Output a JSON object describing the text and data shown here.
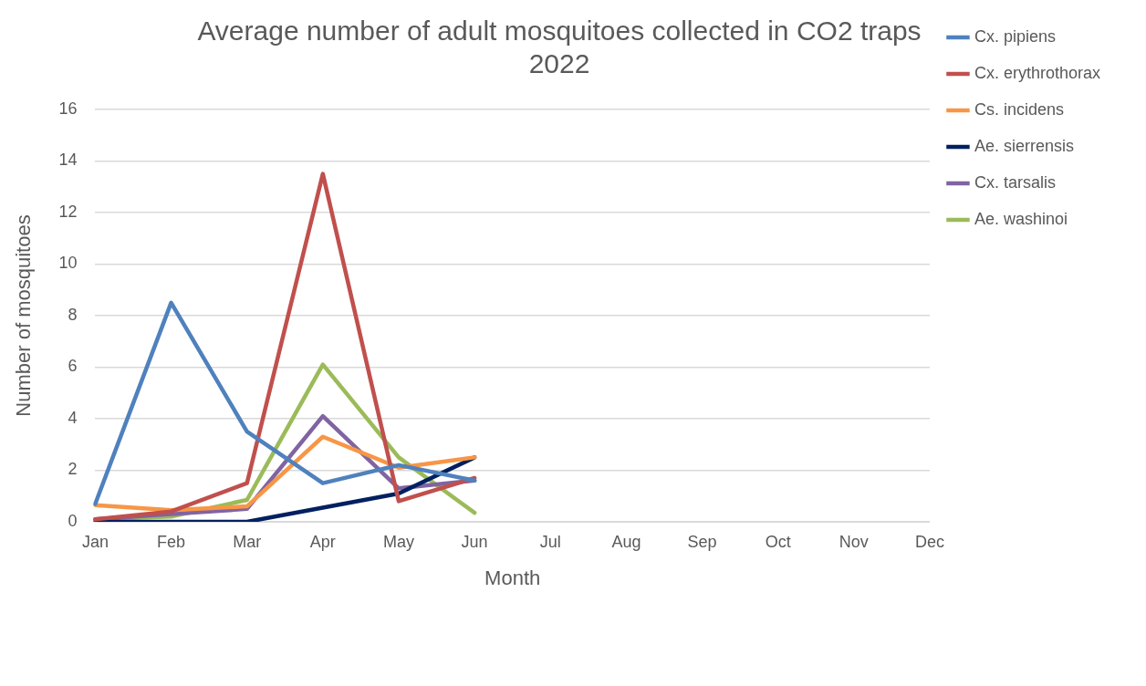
{
  "chart_data": {
    "type": "line",
    "title": "Average number of adult mosquitoes collected in CO2 traps\n2022",
    "xlabel": "Month",
    "ylabel": "Number of mosquitoes",
    "categories": [
      "Jan",
      "Feb",
      "Mar",
      "Apr",
      "May",
      "Jun",
      "Jul",
      "Aug",
      "Sep",
      "Oct",
      "Nov",
      "Dec"
    ],
    "series": [
      {
        "name": "Cx. pipiens",
        "color": "#4f81bd",
        "values": [
          0.7,
          8.5,
          3.5,
          1.5,
          2.2,
          1.6,
          null,
          null,
          null,
          null,
          null,
          null
        ]
      },
      {
        "name": "Cx. erythrothorax",
        "color": "#c0504d",
        "values": [
          0.1,
          0.4,
          1.5,
          13.5,
          0.8,
          1.7,
          null,
          null,
          null,
          null,
          null,
          null
        ]
      },
      {
        "name": "Cs. incidens",
        "color": "#f79646",
        "values": [
          0.65,
          0.45,
          0.6,
          3.3,
          2.1,
          2.5,
          null,
          null,
          null,
          null,
          null,
          null
        ]
      },
      {
        "name": "Ae. sierrensis",
        "color": "#002060",
        "values": [
          0,
          0,
          0,
          0.55,
          1.1,
          2.5,
          null,
          null,
          null,
          null,
          null,
          null
        ]
      },
      {
        "name": "Cx. tarsalis",
        "color": "#8064a2",
        "values": [
          0.1,
          0.3,
          0.5,
          4.1,
          1.3,
          1.6,
          null,
          null,
          null,
          null,
          null,
          null
        ]
      },
      {
        "name": "Ae. washinoi",
        "color": "#9bbb59",
        "values": [
          0.1,
          0.2,
          0.85,
          6.1,
          2.5,
          0.35,
          null,
          null,
          null,
          null,
          null,
          null
        ]
      }
    ],
    "ylim": [
      0,
      16
    ],
    "yticks": [
      0,
      2,
      4,
      6,
      8,
      10,
      12,
      14,
      16
    ],
    "grid": "y",
    "legend": "right",
    "marker": "none",
    "line_style": "solid"
  }
}
